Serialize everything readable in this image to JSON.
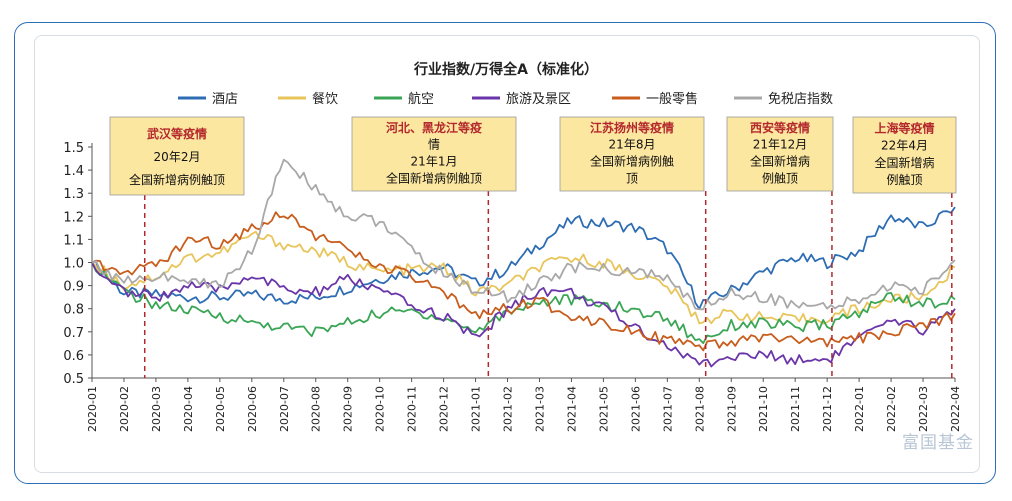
{
  "chart_data": {
    "type": "line",
    "title": "行业指数/万得全A（标准化）",
    "ylim": [
      0.5,
      1.5
    ],
    "yticks": [
      "0.5",
      "0.6",
      "0.7",
      "0.8",
      "0.9",
      "1.0",
      "1.1",
      "1.2",
      "1.3",
      "1.4",
      "1.5"
    ],
    "x_ticks": [
      "2020-01",
      "2020-02",
      "2020-03",
      "2020-04",
      "2020-05",
      "2020-06",
      "2020-07",
      "2020-08",
      "2020-09",
      "2020-10",
      "2020-11",
      "2020-12",
      "2021-01",
      "2021-02",
      "2021-03",
      "2021-04",
      "2021-05",
      "2021-06",
      "2021-07",
      "2021-08",
      "2021-09",
      "2021-10",
      "2021-11",
      "2021-12",
      "2022-01",
      "2022-02",
      "2022-03",
      "2022-04"
    ],
    "legend_placement": "top",
    "series": [
      {
        "name": "酒店",
        "color": "#2e6db4",
        "values": [
          1.0,
          0.87,
          0.86,
          0.85,
          0.85,
          0.86,
          0.84,
          0.85,
          0.89,
          0.93,
          0.96,
          0.98,
          0.91,
          0.97,
          1.08,
          1.18,
          1.17,
          1.15,
          1.06,
          0.82,
          0.88,
          0.96,
          1.02,
          1.0,
          1.05,
          1.2,
          1.15,
          1.24
        ]
      },
      {
        "name": "餐饮",
        "color": "#e8c55a",
        "values": [
          1.0,
          0.9,
          0.94,
          1.02,
          1.04,
          1.12,
          1.08,
          1.05,
          1.0,
          0.96,
          0.97,
          0.98,
          0.87,
          0.9,
          0.98,
          1.02,
          1.0,
          0.95,
          0.9,
          0.75,
          0.78,
          0.76,
          0.75,
          0.76,
          0.8,
          0.84,
          0.85,
          0.98
        ]
      },
      {
        "name": "航空",
        "color": "#3aa655",
        "values": [
          1.0,
          0.87,
          0.82,
          0.79,
          0.77,
          0.74,
          0.72,
          0.7,
          0.74,
          0.78,
          0.79,
          0.76,
          0.7,
          0.79,
          0.83,
          0.84,
          0.82,
          0.79,
          0.76,
          0.66,
          0.73,
          0.74,
          0.72,
          0.73,
          0.78,
          0.86,
          0.82,
          0.84
        ]
      },
      {
        "name": "旅游及景区",
        "color": "#6a35a8",
        "values": [
          1.0,
          0.87,
          0.85,
          0.9,
          0.88,
          0.95,
          0.88,
          0.87,
          0.93,
          0.88,
          0.81,
          0.77,
          0.67,
          0.8,
          0.88,
          0.87,
          0.8,
          0.72,
          0.64,
          0.56,
          0.59,
          0.6,
          0.58,
          0.58,
          0.67,
          0.74,
          0.71,
          0.8
        ]
      },
      {
        "name": "一般零售",
        "color": "#c85d1c",
        "values": [
          1.0,
          0.97,
          0.98,
          1.1,
          1.08,
          1.15,
          1.22,
          1.12,
          1.05,
          0.98,
          0.94,
          0.86,
          0.78,
          0.8,
          0.83,
          0.77,
          0.74,
          0.71,
          0.66,
          0.63,
          0.65,
          0.68,
          0.66,
          0.65,
          0.67,
          0.7,
          0.72,
          0.78
        ]
      },
      {
        "name": "免税店指数",
        "color": "#a8a8a8",
        "values": [
          1.0,
          0.92,
          0.94,
          0.92,
          0.9,
          1.05,
          1.45,
          1.32,
          1.2,
          1.18,
          1.05,
          0.95,
          0.88,
          0.85,
          0.91,
          0.98,
          0.97,
          0.96,
          0.93,
          0.8,
          0.87,
          0.85,
          0.82,
          0.8,
          0.84,
          0.9,
          0.88,
          1.01
        ]
      }
    ],
    "annotations": [
      {
        "lines": [
          "武汉等疫情",
          "20年2月",
          "全国新增病例触顶"
        ],
        "x_index": 1.65
      },
      {
        "lines": [
          "河北、黑龙江等疫",
          "情",
          "21年1月",
          "全国新增病例触顶"
        ],
        "x_index": 12.4
      },
      {
        "lines": [
          "江苏扬州等疫情",
          "21年8月",
          "全国新增病例触",
          "顶"
        ],
        "x_index": 19.2
      },
      {
        "lines": [
          "西安等疫情",
          "21年12月",
          "全国新增病",
          "例触顶"
        ],
        "x_index": 23.15
      },
      {
        "lines": [
          "上海等疫情",
          "22年4月",
          "全国新增病",
          "例触顶"
        ],
        "x_index": 26.9
      }
    ]
  },
  "watermark": "富国基金"
}
